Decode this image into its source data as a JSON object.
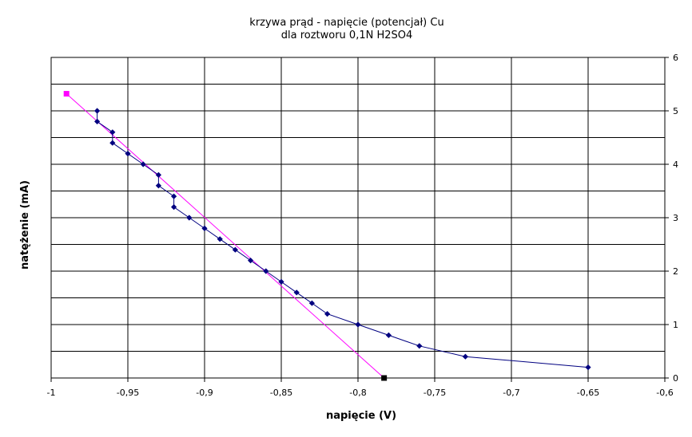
{
  "chart_data": {
    "type": "scatter",
    "title": [
      "krzywa prąd - napięcie (potencjał) Cu",
      "dla roztworu 0,1N H2SO4"
    ],
    "xlabel": "napięcie (V)",
    "ylabel": "natężenie (mA)",
    "xlim": [
      -1,
      -0.6
    ],
    "ylim": [
      0,
      6
    ],
    "x_ticks": [
      -1,
      -0.95,
      -0.9,
      -0.85,
      -0.8,
      -0.75,
      -0.7,
      -0.65,
      -0.6
    ],
    "x_tick_labels": [
      "-1",
      "-0,95",
      "-0,9",
      "-0,85",
      "-0,8",
      "-0,75",
      "-0,7",
      "-0,65",
      "-0,6"
    ],
    "y_ticks": [
      0,
      1,
      2,
      3,
      4,
      5,
      6
    ],
    "y_tick_labels": [
      "0",
      "1",
      "2",
      "3",
      "4",
      "5",
      "6"
    ],
    "y_minor_step": 0.5,
    "grid": true,
    "series": [
      {
        "type": "line-markers",
        "color": "#000080",
        "marker": "diamond",
        "x": [
          -0.97,
          -0.97,
          -0.96,
          -0.96,
          -0.95,
          -0.94,
          -0.93,
          -0.93,
          -0.92,
          -0.92,
          -0.91,
          -0.9,
          -0.89,
          -0.88,
          -0.87,
          -0.86,
          -0.85,
          -0.84,
          -0.83,
          -0.82,
          -0.8,
          -0.78,
          -0.76,
          -0.73,
          -0.65
        ],
        "y": [
          5.0,
          4.8,
          4.6,
          4.4,
          4.2,
          4.0,
          3.8,
          3.6,
          3.4,
          3.2,
          3.0,
          2.8,
          2.6,
          2.4,
          2.2,
          2.0,
          1.8,
          1.6,
          1.4,
          1.2,
          1.0,
          0.8,
          0.6,
          0.4,
          0.2
        ]
      },
      {
        "type": "line-endpoints",
        "color": "#ff00ff",
        "x": [
          -0.99,
          -0.783
        ],
        "y": [
          5.32,
          0.0
        ],
        "end_marker_colors": [
          "#ff00ff",
          "#000000"
        ]
      }
    ]
  }
}
